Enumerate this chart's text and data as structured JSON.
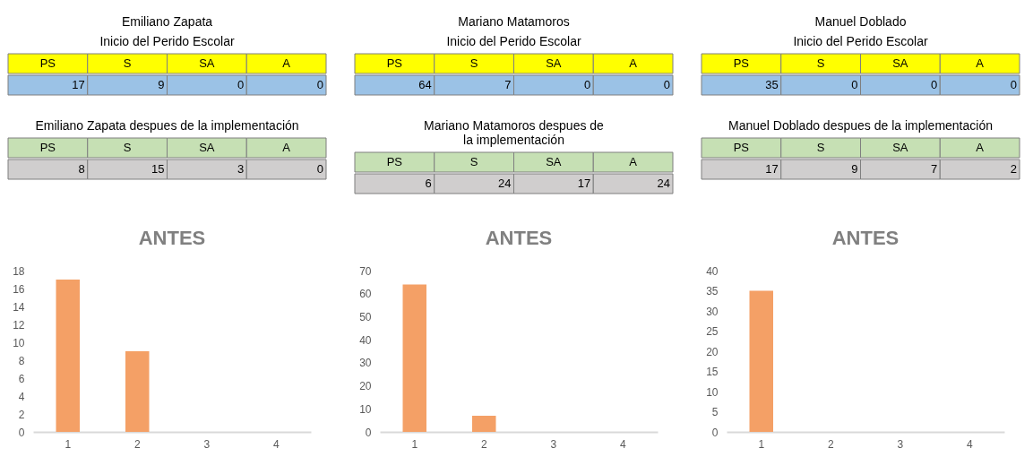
{
  "chart_data": [
    {
      "type": "other",
      "title": "Emiliano Zapata",
      "subtitle": "Inicio del Perido Escolar",
      "data_labels": true,
      "categories": [
        "PS",
        "S",
        "SA",
        "A"
      ],
      "series": [
        {
          "color": "#9bc2e6",
          "values": [
            17,
            9,
            0,
            0
          ]
        }
      ]
    },
    {
      "type": "other",
      "title": "Mariano Matamoros",
      "subtitle": "Inicio del Perido Escolar",
      "data_labels": true,
      "categories": [
        "PS",
        "S",
        "SA",
        "A"
      ],
      "series": [
        {
          "color": "#9bc2e6",
          "values": [
            64,
            7,
            0,
            0
          ]
        }
      ]
    },
    {
      "type": "other",
      "title": "Manuel Doblado",
      "subtitle": "Inicio del Perido Escolar",
      "data_labels": true,
      "categories": [
        "PS",
        "S",
        "SA",
        "A"
      ],
      "series": [
        {
          "color": "#9bc2e6",
          "values": [
            35,
            0,
            0,
            0
          ]
        }
      ]
    },
    {
      "type": "other",
      "title": "Emiliano Zapata despues de la implementación",
      "data_labels": true,
      "categories": [
        "PS",
        "S",
        "SA",
        "A"
      ],
      "series": [
        {
          "color": "#d0cece",
          "values": [
            8,
            15,
            3,
            0
          ]
        }
      ]
    },
    {
      "type": "other",
      "title": "Mariano Matamoros despues de la implementación",
      "data_labels": true,
      "categories": [
        "PS",
        "S",
        "SA",
        "A"
      ],
      "series": [
        {
          "color": "#d0cece",
          "values": [
            6,
            24,
            17,
            24
          ]
        }
      ]
    },
    {
      "type": "other",
      "title": "Manuel Doblado despues de la implementación",
      "data_labels": true,
      "categories": [
        "PS",
        "S",
        "SA",
        "A"
      ],
      "series": [
        {
          "color": "#d0cece",
          "values": [
            17,
            9,
            7,
            2
          ]
        }
      ]
    },
    {
      "type": "bar",
      "title": "ANTES",
      "categories": [
        "1",
        "2",
        "3",
        "4"
      ],
      "values": [
        17,
        9,
        0,
        0
      ],
      "color": "#f4a066",
      "ylim": [
        0,
        18
      ],
      "yticks": [
        0,
        2,
        4,
        6,
        8,
        10,
        12,
        14,
        16,
        18
      ],
      "grid": false
    },
    {
      "type": "bar",
      "title": "ANTES",
      "categories": [
        "1",
        "2",
        "3",
        "4"
      ],
      "values": [
        64,
        7,
        0,
        0
      ],
      "color": "#f4a066",
      "ylim": [
        0,
        70
      ],
      "yticks": [
        0,
        10,
        20,
        30,
        40,
        50,
        60,
        70
      ],
      "grid": false
    },
    {
      "type": "bar",
      "title": "ANTES",
      "categories": [
        "1",
        "2",
        "3",
        "4"
      ],
      "values": [
        35,
        0,
        0,
        0
      ],
      "color": "#f4a066",
      "ylim": [
        0,
        40
      ],
      "yticks": [
        0,
        5,
        10,
        15,
        20,
        25,
        30,
        35,
        40
      ],
      "grid": false
    }
  ]
}
